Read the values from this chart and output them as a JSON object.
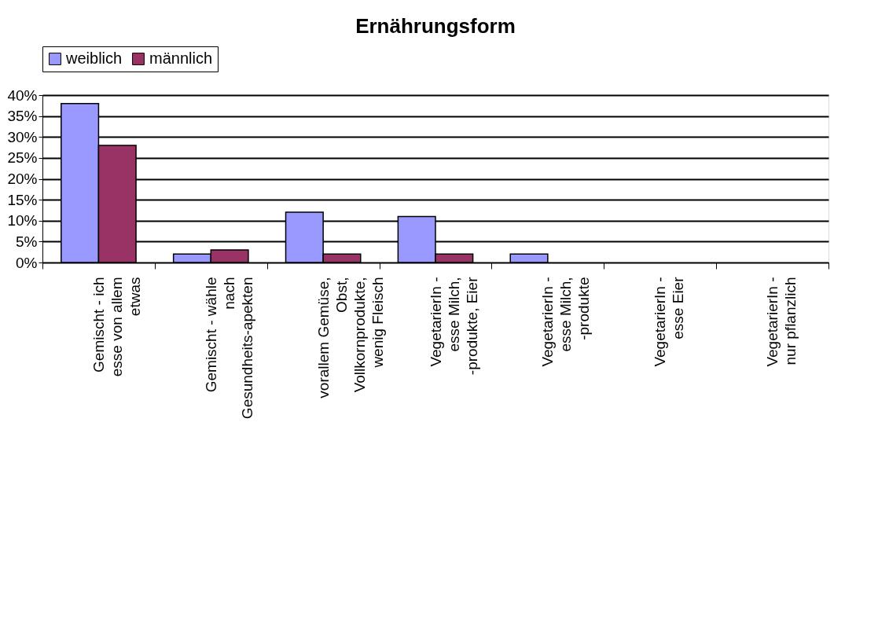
{
  "chart_data": {
    "type": "bar",
    "title": "Ernährungsform",
    "categories": [
      "Gemischt - ich esse von allem etwas",
      "Gemischt - wähle nach Gesundheits-apekten",
      "vorallem Gemüse, Obst, Vollkornprodukte, wenig Fleisch",
      "VegetarierIn - esse Milch, -produkte, Eier",
      "VegetarierIn - esse Milch, -produkte",
      "VegetarierIn - esse Eier",
      "VegetarierIn - nur pflanzlich"
    ],
    "series": [
      {
        "name": "weiblich",
        "color": "#9999ff",
        "values": [
          38,
          2,
          12,
          11,
          2,
          null,
          null
        ]
      },
      {
        "name": "männlich",
        "color": "#993366",
        "values": [
          28,
          3,
          2,
          2,
          null,
          null,
          null
        ]
      }
    ],
    "ylim": [
      0,
      40
    ],
    "yticks": [
      {
        "value": 0,
        "label": "0%"
      },
      {
        "value": 5,
        "label": "5%"
      },
      {
        "value": 10,
        "label": "10%"
      },
      {
        "value": 15,
        "label": "15%"
      },
      {
        "value": 20,
        "label": "20%"
      },
      {
        "value": 25,
        "label": "25%"
      },
      {
        "value": 30,
        "label": "30%"
      },
      {
        "value": 35,
        "label": "35%"
      },
      {
        "value": 40,
        "label": "40%"
      }
    ],
    "grid": "y",
    "legend": "top"
  }
}
